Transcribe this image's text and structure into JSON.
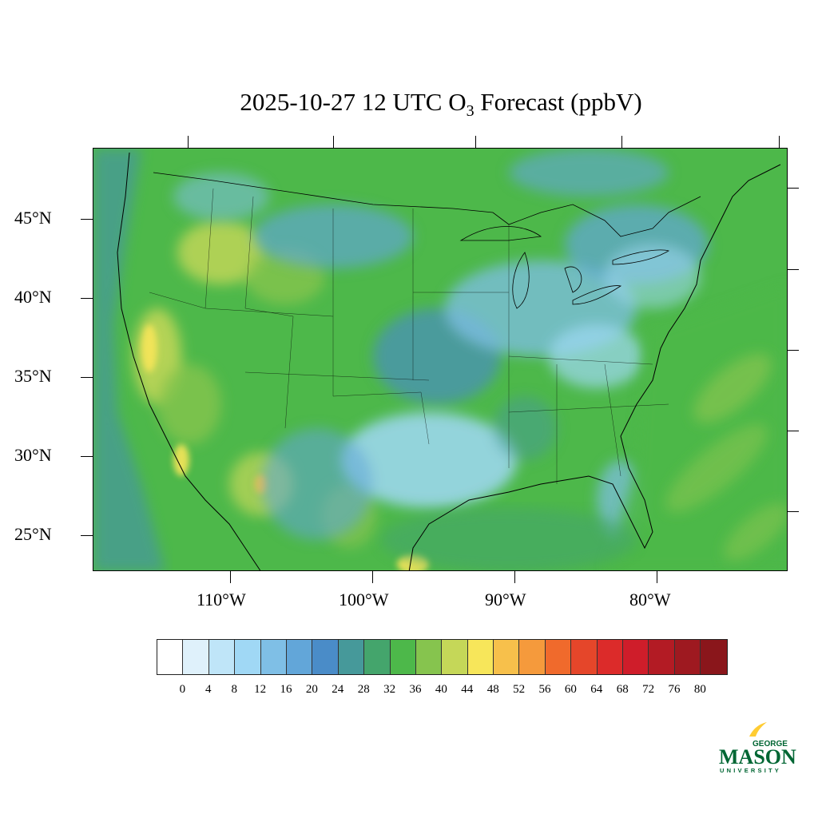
{
  "title": {
    "prefix": "2025-10-27 12 UTC O",
    "subscript": "3",
    "suffix": " Forecast (ppbV)"
  },
  "axes": {
    "lat_labels": [
      "45°N",
      "40°N",
      "35°N",
      "30°N",
      "25°N"
    ],
    "lon_labels": [
      "110°W",
      "100°W",
      "90°W",
      "80°W"
    ]
  },
  "colorbar": {
    "colors": [
      "#ffffff",
      "#dff1fb",
      "#bfe5f8",
      "#a0d8f5",
      "#7fbfe6",
      "#62a6d9",
      "#4a8cc8",
      "#46999a",
      "#44a56c",
      "#4db84a",
      "#86c44e",
      "#c5d758",
      "#f7e65a",
      "#f7c04b",
      "#f59a3c",
      "#f06a2c",
      "#e5462a",
      "#dc2b2a",
      "#cf1d2a",
      "#b31b24",
      "#9e1920",
      "#8a161b"
    ],
    "labels": [
      "0",
      "4",
      "8",
      "12",
      "16",
      "20",
      "24",
      "28",
      "32",
      "36",
      "40",
      "44",
      "48",
      "52",
      "56",
      "60",
      "64",
      "68",
      "72",
      "76",
      "80"
    ]
  },
  "logo": {
    "top": "GEORGE",
    "main": "MASON",
    "bottom": "UNIVERSITY",
    "colors": {
      "green": "#006633",
      "gold": "#ffcc33"
    }
  }
}
